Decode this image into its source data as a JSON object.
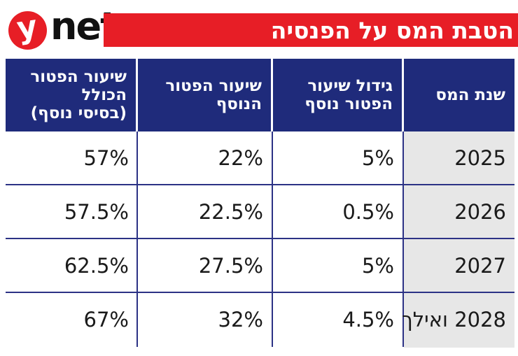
{
  "logo": {
    "y": "y",
    "net": "net"
  },
  "banner": {
    "title": "הטבת המס על הפנסיה"
  },
  "table": {
    "headers": [
      "שנת המס",
      "גידול שיעור\nהפטור נוסף",
      "שיעור הפטור\nהנוסף",
      "שיעור הפטור\nהכולל\n(בסיסי נוסף)"
    ],
    "rows": [
      {
        "year": "2025",
        "growth": "5%",
        "additional": "22%",
        "total": "57%"
      },
      {
        "year": "2026",
        "growth": "0.5%",
        "additional": "22.5%",
        "total": "57.5%"
      },
      {
        "year": "2027",
        "growth": "5%",
        "additional": "27.5%",
        "total": "62.5%"
      },
      {
        "year": "2028 ואילך",
        "growth": "4.5%",
        "additional": "32%",
        "total": "67%"
      }
    ]
  },
  "colors": {
    "banner_red": "#e71e26",
    "header_navy": "#1f2b7b",
    "grid_navy": "#2c3285",
    "year_column_gray": "#e7e7e7",
    "text": "#1a1a1a"
  },
  "chart_data": {
    "type": "table",
    "title": "הטבת המס על הפנסיה",
    "columns": [
      "שנת המס",
      "גידול שיעור הפטור נוסף",
      "שיעור הפטור הנוסף",
      "שיעור הפטור הכולל (בסיסי נוסף)"
    ],
    "rows": [
      [
        "2025",
        "5%",
        "22%",
        "57%"
      ],
      [
        "2026",
        "0.5%",
        "22.5%",
        "57.5%"
      ],
      [
        "2027",
        "5%",
        "27.5%",
        "62.5%"
      ],
      [
        "2028 ואילך",
        "4.5%",
        "32%",
        "67%"
      ]
    ]
  }
}
